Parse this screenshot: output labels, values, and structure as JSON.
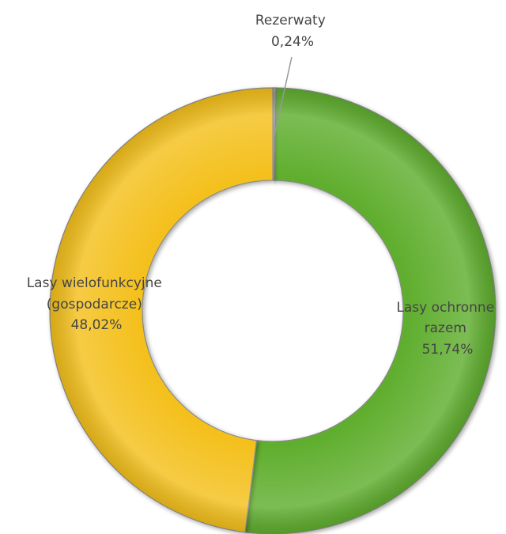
{
  "chart_data": {
    "type": "donut",
    "title": "",
    "slices": [
      {
        "label_lines": [
          "Rezerwaty"
        ],
        "value_label": "0,24%",
        "value": 0.24,
        "color": "#bfbfbf"
      },
      {
        "label_lines": [
          "Lasy ochronne",
          "razem"
        ],
        "value_label": "51,74%",
        "value": 51.74,
        "color": "#5fae2e"
      },
      {
        "label_lines": [
          "Lasy wielofunkcyjne",
          "(gospodarcze)"
        ],
        "value_label": "48,02%",
        "value": 48.02,
        "color": "#f4c01f"
      }
    ],
    "legend": "none"
  }
}
